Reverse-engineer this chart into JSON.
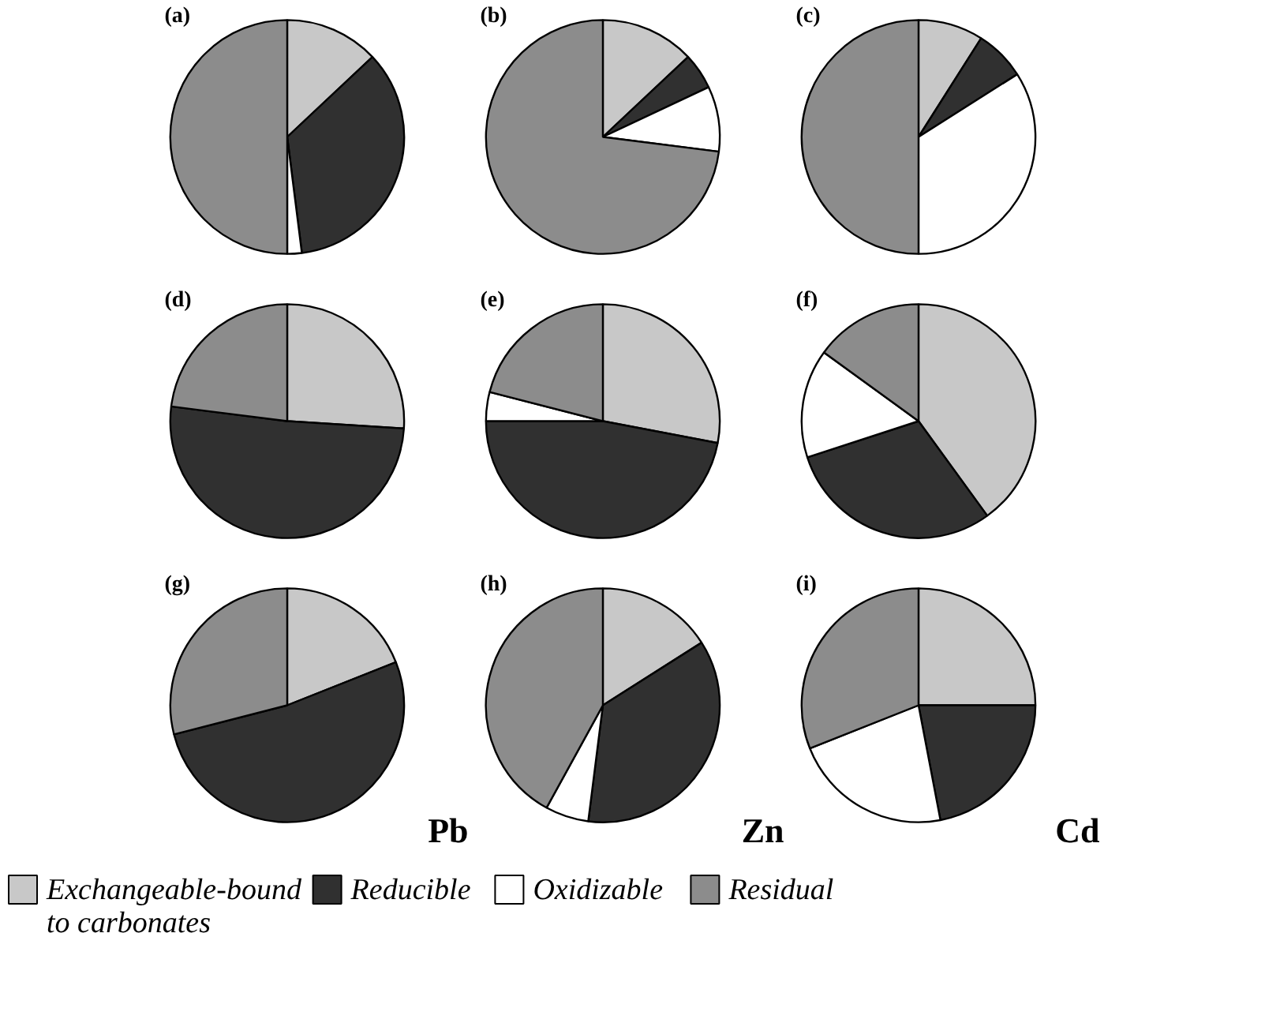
{
  "chart_data": [
    {
      "type": "pie",
      "title": "(a)",
      "categories": [
        "Exchangeable-bound\nto carbonates",
        "Reducible",
        "Oxidizable",
        "Residual"
      ],
      "values": [
        13,
        35,
        2,
        50
      ],
      "colors": [
        "#c8c8c8",
        "#303030",
        "#ffffff",
        "#8c8c8c"
      ],
      "legend": "bottom"
    },
    {
      "type": "pie",
      "title": "(b)",
      "values": [
        13,
        5,
        9,
        73
      ],
      "colors": [
        "#c8c8c8",
        "#303030",
        "#ffffff",
        "#8c8c8c"
      ]
    },
    {
      "type": "pie",
      "title": "(c)",
      "values": [
        9,
        7,
        34,
        50
      ],
      "colors": [
        "#c8c8c8",
        "#303030",
        "#ffffff",
        "#8c8c8c"
      ]
    },
    {
      "type": "pie",
      "title": "(d)",
      "values": [
        26,
        51,
        23
      ],
      "colors": [
        "#c8c8c8",
        "#303030",
        "#8c8c8c"
      ]
    },
    {
      "type": "pie",
      "title": "(e)",
      "values": [
        28,
        47,
        4,
        21
      ],
      "colors": [
        "#c8c8c8",
        "#303030",
        "#ffffff",
        "#8c8c8c"
      ]
    },
    {
      "type": "pie",
      "title": "(f)",
      "values": [
        40,
        30,
        15,
        15
      ],
      "colors": [
        "#c8c8c8",
        "#303030",
        "#ffffff",
        "#8c8c8c"
      ]
    },
    {
      "type": "pie",
      "title": "(g)",
      "values": [
        19,
        52,
        29
      ],
      "colors": [
        "#c8c8c8",
        "#303030",
        "#8c8c8c"
      ],
      "annotations": [
        "Pb"
      ]
    },
    {
      "type": "pie",
      "title": "(h)",
      "values": [
        16,
        36,
        6,
        42
      ],
      "colors": [
        "#c8c8c8",
        "#303030",
        "#ffffff",
        "#8c8c8c"
      ],
      "annotations": [
        "Zn"
      ]
    },
    {
      "type": "pie",
      "title": "(i)",
      "values": [
        25,
        22,
        22,
        31
      ],
      "colors": [
        "#c8c8c8",
        "#303030",
        "#ffffff",
        "#8c8c8c"
      ],
      "annotations": [
        "Cd"
      ]
    }
  ]
}
